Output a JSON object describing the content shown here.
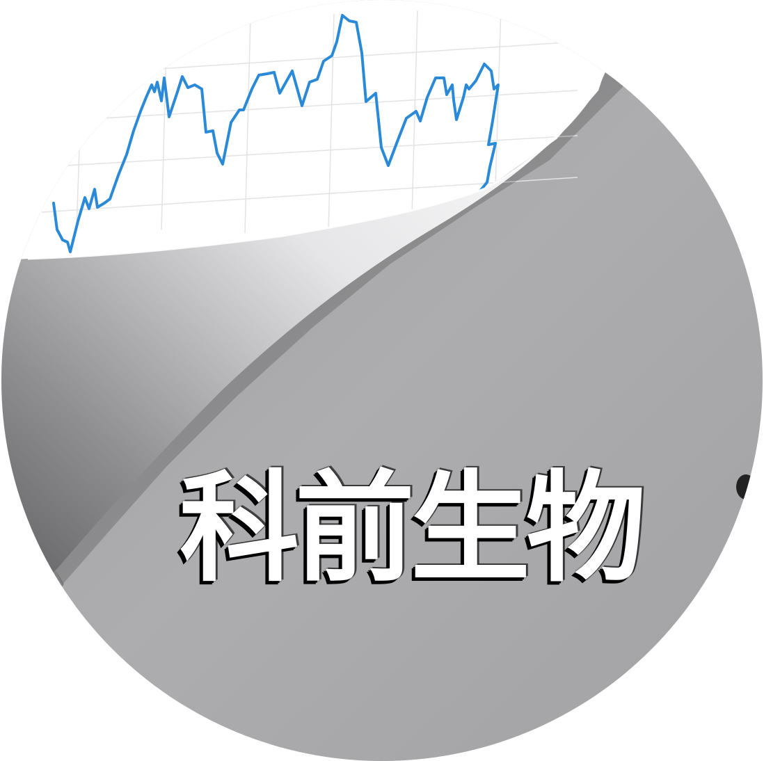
{
  "title": "科前生物",
  "colors": {
    "background": "#ffffff",
    "paper": "#ffffff",
    "underlay_gray": "#a6a6a8",
    "line": "#2a8ad8",
    "grid": "#e3e3e6",
    "title_text": "#ffffff",
    "title_outline": "#000000"
  },
  "icons": [
    "page-curl-graphic",
    "stock-trend-line"
  ]
}
